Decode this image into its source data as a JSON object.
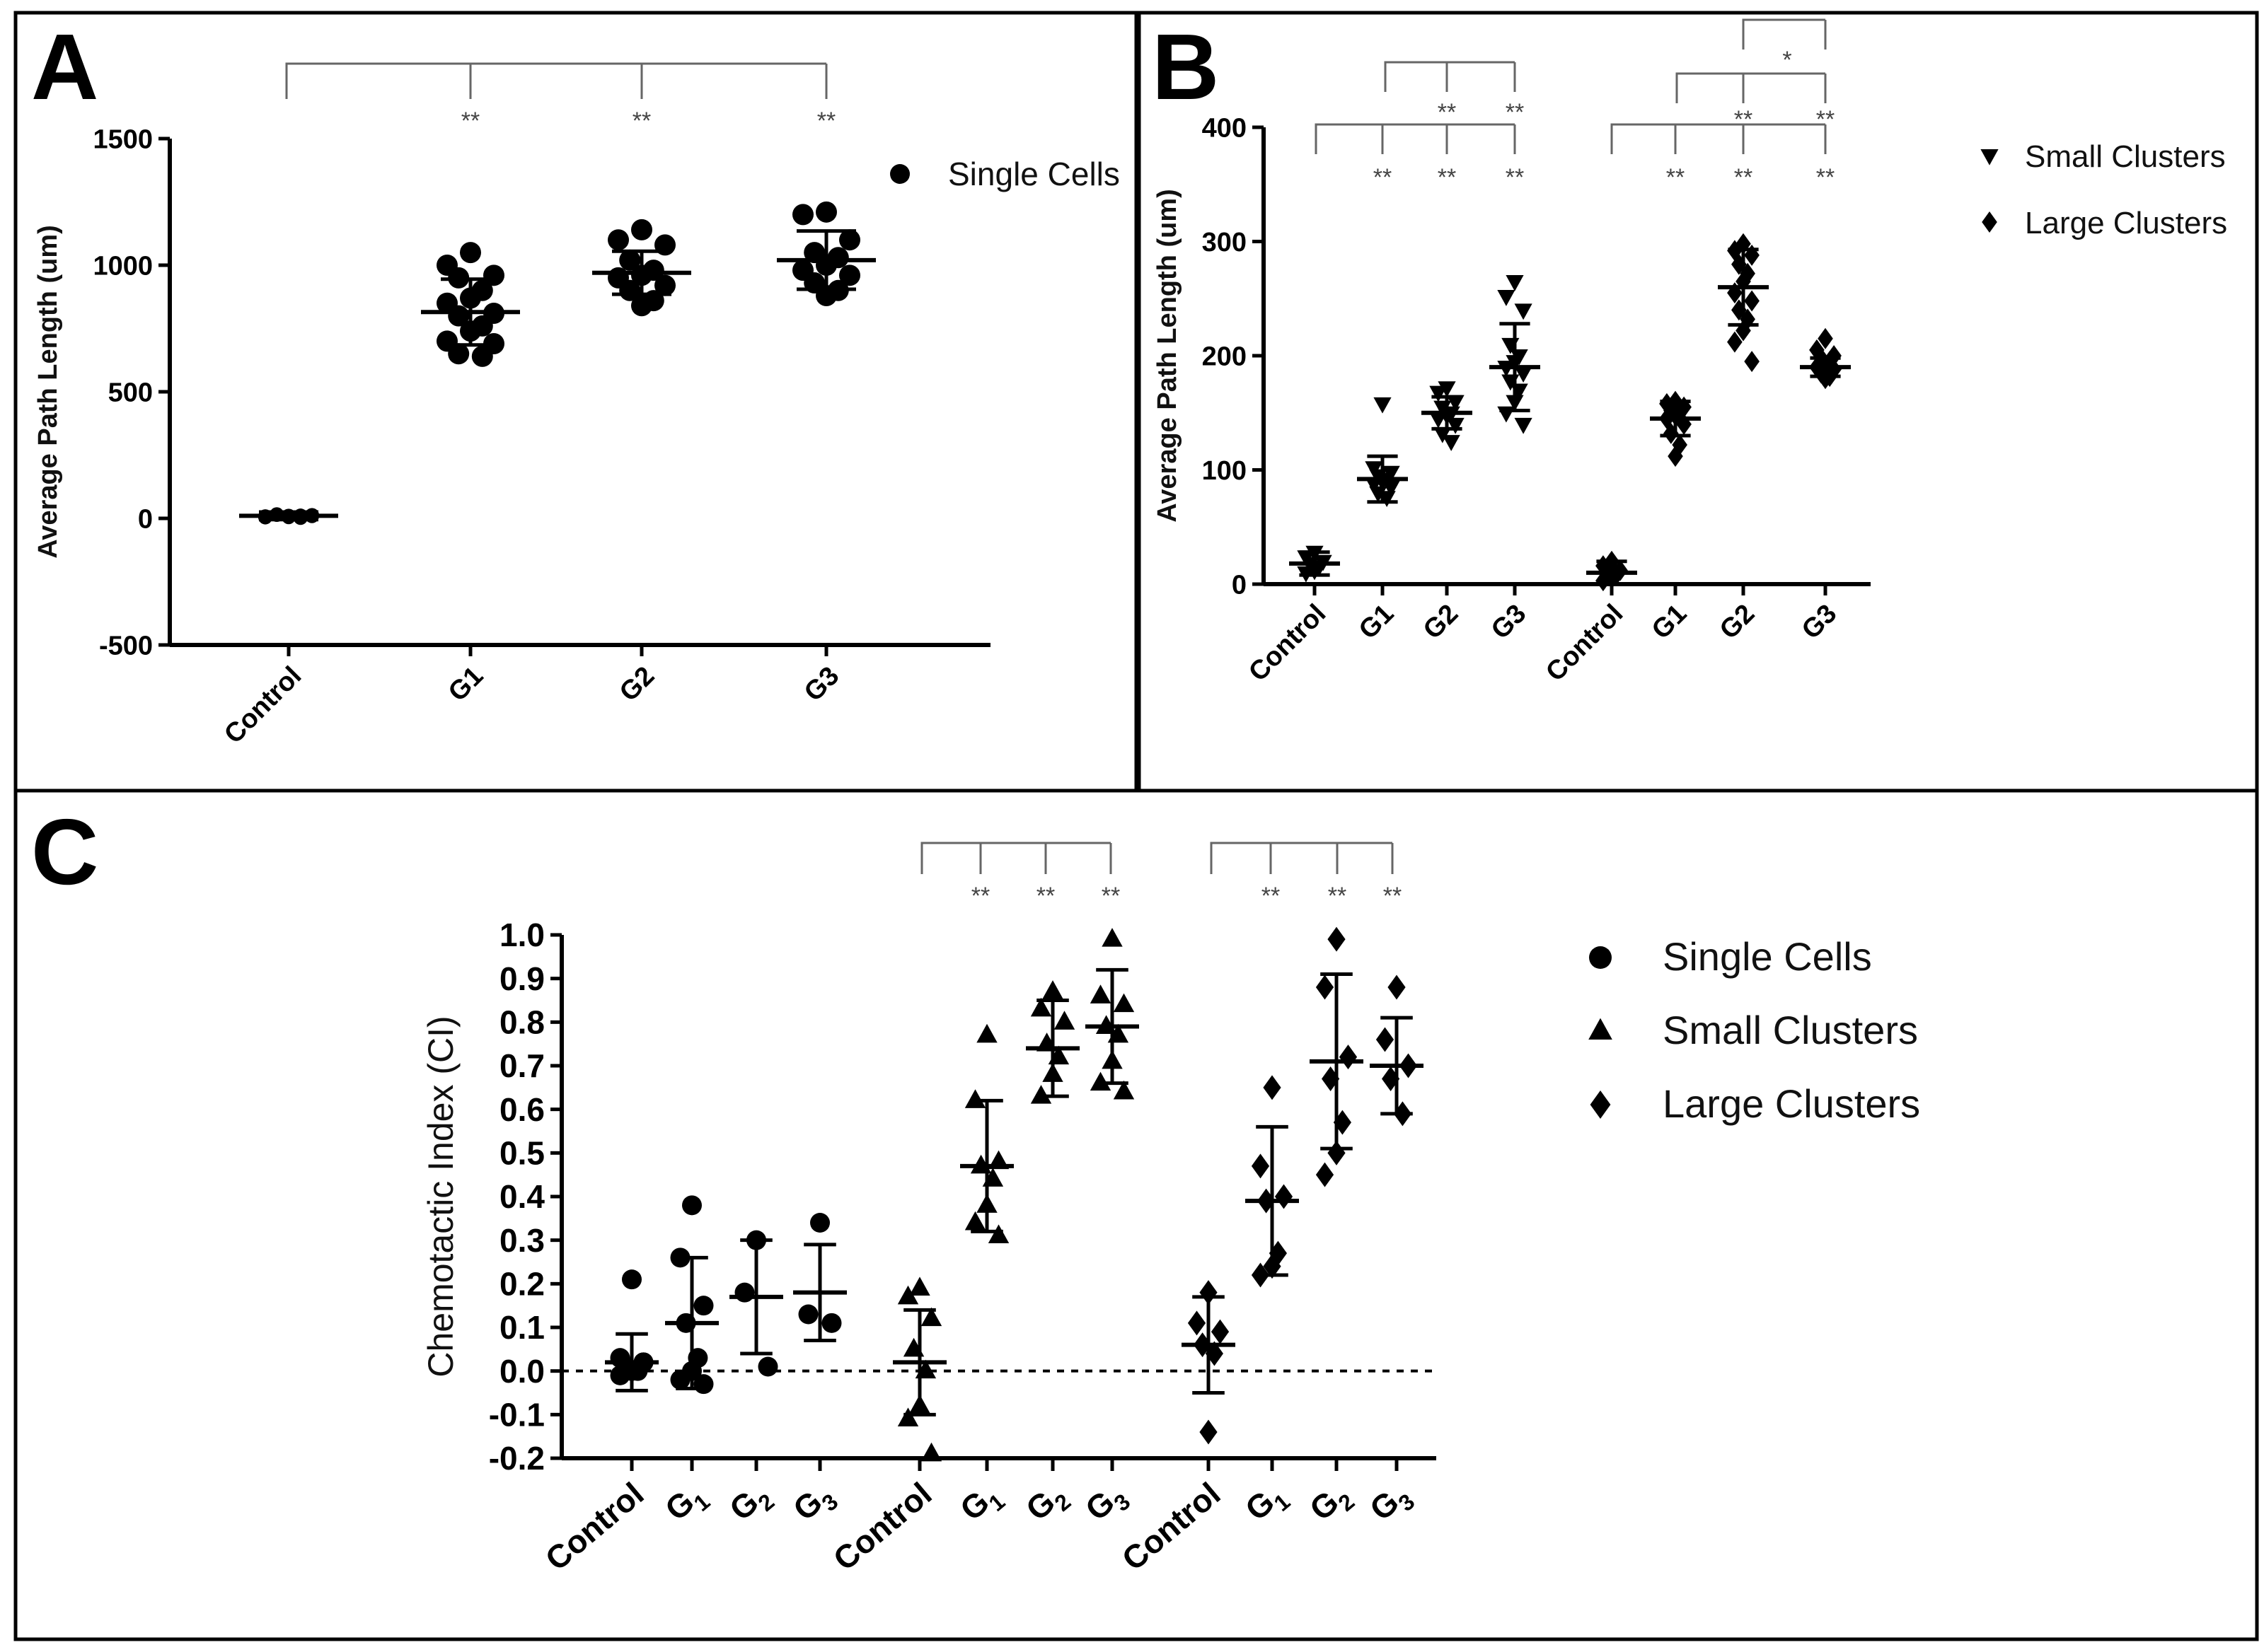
{
  "panels": {
    "a": "A",
    "b": "B",
    "c": "C"
  },
  "chart_data": [
    {
      "panel": "A",
      "type": "scatter",
      "ylabel": "Average Path Length (um)",
      "ylim": [
        -500,
        1500
      ],
      "yticks": [
        -500,
        0,
        500,
        1000,
        1500
      ],
      "yticklabels": [
        "-500",
        "0",
        "500",
        "1000",
        "1500"
      ],
      "categories": [
        "Control",
        "G1",
        "G2",
        "G3"
      ],
      "series": [
        {
          "name": "Single Cells",
          "marker": "circle",
          "groups": [
            {
              "points": [
                5,
                8,
                12,
                15,
                3,
                10,
                6,
                9,
                14,
                11,
                7,
                4,
                13,
                16,
                2,
                8
              ],
              "mean": 10,
              "sd": 15
            },
            {
              "points": [
                1050,
                1000,
                960,
                950,
                900,
                870,
                850,
                810,
                800,
                760,
                740,
                700,
                690,
                650,
                640
              ],
              "mean": 815,
              "sd": 130
            },
            {
              "points": [
                1140,
                1100,
                1080,
                1020,
                980,
                960,
                950,
                920,
                900,
                860,
                840
              ],
              "mean": 970,
              "sd": 85
            },
            {
              "points": [
                1210,
                1200,
                1100,
                1050,
                1030,
                1000,
                980,
                960,
                930,
                900,
                880
              ],
              "mean": 1020,
              "sd": 115
            }
          ]
        }
      ],
      "legend": [
        {
          "label": "Single Cells",
          "marker": "circle"
        }
      ],
      "significance": {
        "stars": [
          "**",
          "**",
          "**"
        ]
      }
    },
    {
      "panel": "B",
      "type": "scatter",
      "ylabel": "Average Path Length (um)",
      "ylim": [
        0,
        400
      ],
      "yticks": [
        0,
        100,
        200,
        300,
        400
      ],
      "yticklabels": [
        "0",
        "100",
        "200",
        "300",
        "400"
      ],
      "categories": [
        "Control",
        "G1",
        "G2",
        "G3",
        "Control",
        "G1",
        "G2",
        "G3"
      ],
      "series": [
        {
          "name": "Small Clusters",
          "marker": "triangle-down",
          "groups": [
            {
              "points": [
                28,
                24,
                20,
                18,
                15,
                12,
                10
              ],
              "mean": 18,
              "sd": 10
            },
            {
              "points": [
                158,
                102,
                98,
                95,
                92,
                90,
                88,
                85,
                80,
                76
              ],
              "mean": 92,
              "sd": 20
            },
            {
              "points": [
                172,
                168,
                160,
                155,
                150,
                148,
                145,
                140,
                132,
                125
              ],
              "mean": 150,
              "sd": 14
            },
            {
              "points": [
                265,
                252,
                240,
                210,
                200,
                195,
                190,
                185,
                178,
                170,
                160,
                150,
                140
              ],
              "mean": 190,
              "sd": 38
            }
          ]
        },
        {
          "name": "Large Clusters",
          "marker": "diamond",
          "groups": [
            {
              "points": [
                20,
                16,
                12,
                10,
                8,
                5,
                3
              ],
              "mean": 10,
              "sd": 10
            },
            {
              "points": [
                160,
                158,
                155,
                152,
                150,
                148,
                145,
                140,
                132,
                122,
                112
              ],
              "mean": 145,
              "sd": 15
            },
            {
              "points": [
                298,
                292,
                288,
                280,
                272,
                265,
                255,
                248,
                240,
                232,
                222,
                212,
                195
              ],
              "mean": 260,
              "sd": 33
            },
            {
              "points": [
                215,
                205,
                200,
                198,
                195,
                192,
                190,
                188,
                185,
                182,
                180
              ],
              "mean": 190,
              "sd": 8
            }
          ]
        }
      ],
      "legend": [
        {
          "label": "Small Clusters",
          "marker": "triangle-down"
        },
        {
          "label": "Large Clusters",
          "marker": "diamond"
        }
      ],
      "significance": {
        "small_clusters": {
          "vs_control": [
            "**",
            "**",
            "**"
          ],
          "vs_g1": [
            "**",
            "**"
          ]
        },
        "large_clusters": {
          "vs_control": [
            "**",
            "**",
            "**"
          ],
          "vs_g1": [
            "**",
            "**"
          ],
          "g2_vs_g3": "*"
        }
      }
    },
    {
      "panel": "C",
      "type": "scatter",
      "ylabel": "Chemotactic Index (CI)",
      "ylim": [
        -0.2,
        1.0
      ],
      "yticks": [
        -0.2,
        -0.1,
        0.0,
        0.1,
        0.2,
        0.3,
        0.4,
        0.5,
        0.6,
        0.7,
        0.8,
        0.9,
        1.0
      ],
      "yticklabels": [
        "-0.2",
        "-0.1",
        "0.0",
        "0.1",
        "0.2",
        "0.3",
        "0.4",
        "0.5",
        "0.6",
        "0.7",
        "0.8",
        "0.9",
        "1.0"
      ],
      "reference_line": 0.0,
      "categories": [
        "Control",
        "G",
        "G",
        "G",
        "Control",
        "G",
        "G",
        "G",
        "Control",
        "G",
        "G",
        "G"
      ],
      "category_subscripts": [
        "",
        "1",
        "2",
        "3",
        "",
        "1",
        "2",
        "3",
        "",
        "1",
        "2",
        "3"
      ],
      "series": [
        {
          "name": "Single Cells",
          "marker": "circle",
          "groups": [
            {
              "points": [
                0.21,
                0.03,
                0.02,
                0.01,
                0.0,
                0.0,
                -0.01,
                0.02
              ],
              "mean": 0.02,
              "sd": 0.065
            },
            {
              "points": [
                0.38,
                0.26,
                0.15,
                0.11,
                0.03,
                0.0,
                -0.02,
                -0.03
              ],
              "mean": 0.11,
              "sd": 0.15
            },
            {
              "points": [
                0.3,
                0.18,
                0.01
              ],
              "mean": 0.17,
              "sd": 0.13
            },
            {
              "points": [
                0.34,
                0.13,
                0.11
              ],
              "mean": 0.18,
              "sd": 0.11
            }
          ]
        },
        {
          "name": "Small Clusters",
          "marker": "triangle-up",
          "groups": [
            {
              "points": [
                0.19,
                0.17,
                0.12,
                0.05,
                0.0,
                -0.08,
                -0.11,
                -0.19
              ],
              "mean": 0.02,
              "sd": 0.12
            },
            {
              "points": [
                0.77,
                0.62,
                0.48,
                0.47,
                0.44,
                0.38,
                0.34,
                0.31
              ],
              "mean": 0.47,
              "sd": 0.15
            },
            {
              "points": [
                0.87,
                0.83,
                0.8,
                0.75,
                0.72,
                0.68,
                0.63
              ],
              "mean": 0.74,
              "sd": 0.11
            },
            {
              "points": [
                0.99,
                0.86,
                0.84,
                0.79,
                0.77,
                0.71,
                0.66,
                0.64
              ],
              "mean": 0.79,
              "sd": 0.13
            }
          ]
        },
        {
          "name": "Large Clusters",
          "marker": "diamond",
          "groups": [
            {
              "points": [
                0.18,
                0.11,
                0.09,
                0.06,
                0.04,
                -0.14
              ],
              "mean": 0.06,
              "sd": 0.11
            },
            {
              "points": [
                0.65,
                0.47,
                0.4,
                0.39,
                0.27,
                0.24,
                0.22
              ],
              "mean": 0.39,
              "sd": 0.17
            },
            {
              "points": [
                0.99,
                0.88,
                0.72,
                0.67,
                0.57,
                0.5,
                0.45
              ],
              "mean": 0.71,
              "sd": 0.2
            },
            {
              "points": [
                0.88,
                0.76,
                0.7,
                0.67,
                0.59
              ],
              "mean": 0.7,
              "sd": 0.11
            }
          ]
        }
      ],
      "legend": [
        {
          "label": "Single Cells",
          "marker": "circle"
        },
        {
          "label": "Small Clusters",
          "marker": "triangle-up"
        },
        {
          "label": "Large Clusters",
          "marker": "diamond"
        }
      ],
      "significance": {
        "small_clusters": [
          "**",
          "**",
          "**"
        ],
        "large_clusters": [
          "**",
          "**",
          "**"
        ]
      }
    }
  ]
}
